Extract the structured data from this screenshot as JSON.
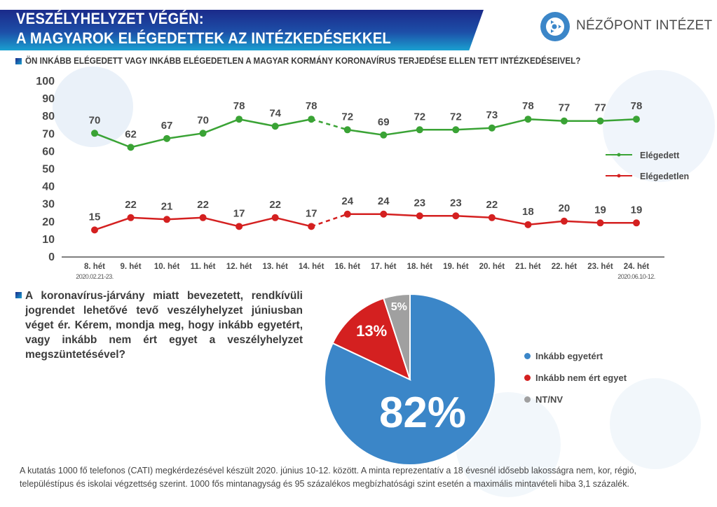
{
  "header": {
    "title_line1": "VESZÉLYHELYZET VÉGÉN:",
    "title_line2": "A MAGYAROK ELÉGEDETTEK AZ INTÉZKEDÉSEKKEL",
    "logo_text": "NÉZŐPONT INTÉZET",
    "logo_icon": "nezopont-logo-icon"
  },
  "question1": "ÖN INKÁBB ELÉGEDETT VAGY INKÁBB ELÉGEDETLEN A MAGYAR KORMÁNY KORONAVÍRUS TERJEDÉSE ELLEN TETT INTÉZKEDÉSEIVEL?",
  "question2": "A koronavírus-járvány miatt bevezetett, rendkívüli jogrendet lehetővé tevő veszélyhelyzet júniusban véget ér. Kérem, mondja meg, hogy inkább egyetért, vagy inkább nem ért egyet a veszélyhelyzet megszüntetésével?",
  "footer_line1": "A kutatás 1000 fő telefonos (CATI) megkérdezésével készült 2020. június 10-12. között.  A minta reprezentatív a 18 évesnél idősebb lakosságra nem, kor, régió,",
  "footer_line2": "településtípus és iskolai végzettség szerint.  1000 fős mintanagyság és 95 százalékos megbízhatósági szint esetén a maximális mintavételi hiba 3,1 százalék.",
  "colors": {
    "green": "#3aa335",
    "red": "#d42020",
    "blue": "#3b86c8",
    "gray": "#a0a0a0",
    "text": "#4a4a4a"
  },
  "chart_data": [
    {
      "type": "line",
      "title": "ÖN INKÁBB ELÉGEDETT VAGY INKÁBB ELÉGEDETLEN A MAGYAR KORMÁNY KORONAVÍRUS TERJEDÉSE ELLEN TETT INTÉZKEDÉSEIVEL?",
      "categories": [
        "8. hét",
        "9. hét",
        "10. hét",
        "11. hét",
        "12. hét",
        "13. hét",
        "14. hét",
        "16. hét",
        "17. hét",
        "18. hét",
        "19. hét",
        "20. hét",
        "21. hét",
        "22. hét",
        "23. hét",
        "24. hét"
      ],
      "first_date": "2020.02.21-23.",
      "last_date": "2020.06.10-12.",
      "series": [
        {
          "name": "Elégedett",
          "color": "#3aa335",
          "values": [
            70,
            62,
            67,
            70,
            78,
            74,
            78,
            72,
            69,
            72,
            72,
            73,
            78,
            77,
            77,
            78
          ]
        },
        {
          "name": "Elégedetlen",
          "color": "#d42020",
          "values": [
            15,
            22,
            21,
            22,
            17,
            22,
            17,
            24,
            24,
            23,
            23,
            22,
            18,
            20,
            19,
            19
          ]
        }
      ],
      "dashed_segment_between": [
        "14. hét",
        "16. hét"
      ],
      "yticks": [
        0,
        10,
        20,
        30,
        40,
        50,
        60,
        70,
        80,
        90,
        100
      ],
      "ylim": [
        0,
        100
      ],
      "xlabel": "",
      "ylabel": "",
      "grid": false,
      "legend_position": "right"
    },
    {
      "type": "pie",
      "title": "A koronavírus-járvány miatt bevezetett, rendkívüli jogrendet lehetővé tevő veszélyhelyzet júniusban véget ér.",
      "slices": [
        {
          "label": "Inkább egyetért",
          "value": 82,
          "display": "82%",
          "color": "#3b86c8"
        },
        {
          "label": "Inkább nem ért egyet",
          "value": 13,
          "display": "13%",
          "color": "#d42020"
        },
        {
          "label": "NT/NV",
          "value": 5,
          "display": "5%",
          "color": "#a0a0a0"
        }
      ],
      "legend_position": "right"
    }
  ]
}
